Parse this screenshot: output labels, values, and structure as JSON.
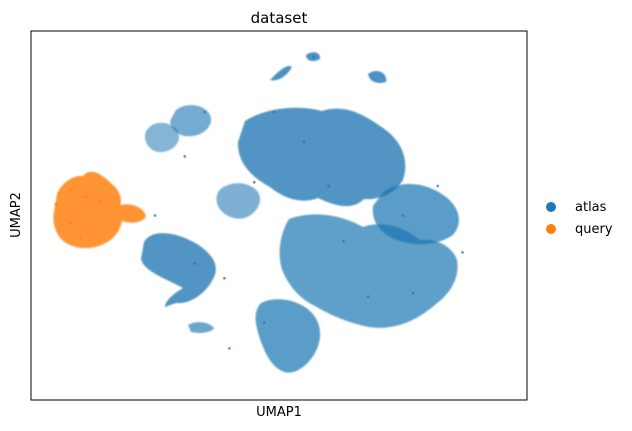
{
  "chart_data": {
    "type": "scatter",
    "title": "dataset",
    "xlabel": "UMAP1",
    "ylabel": "UMAP2",
    "xticks": [],
    "yticks": [],
    "grid": false,
    "legend": {
      "placement": "right-center",
      "entries": [
        "atlas",
        "query"
      ]
    },
    "series": [
      {
        "name": "atlas",
        "color": "#1f77b4",
        "points": [
          {
            "x": 0.25,
            "y": 0.5
          },
          {
            "x": 0.33,
            "y": 0.37
          },
          {
            "x": 0.39,
            "y": 0.33
          },
          {
            "x": 0.55,
            "y": 0.7
          },
          {
            "x": 0.6,
            "y": 0.58
          },
          {
            "x": 0.63,
            "y": 0.43
          },
          {
            "x": 0.68,
            "y": 0.28
          },
          {
            "x": 0.75,
            "y": 0.5
          },
          {
            "x": 0.82,
            "y": 0.58
          },
          {
            "x": 0.87,
            "y": 0.4
          },
          {
            "x": 0.45,
            "y": 0.59
          },
          {
            "x": 0.49,
            "y": 0.78
          },
          {
            "x": 0.57,
            "y": 0.93
          },
          {
            "x": 0.47,
            "y": 0.21
          },
          {
            "x": 0.77,
            "y": 0.29
          },
          {
            "x": 0.35,
            "y": 0.78
          },
          {
            "x": 0.31,
            "y": 0.66
          },
          {
            "x": 0.4,
            "y": 0.14
          }
        ]
      },
      {
        "name": "query",
        "color": "#ff7f0e",
        "points": [
          {
            "x": 0.05,
            "y": 0.53
          },
          {
            "x": 0.08,
            "y": 0.57
          },
          {
            "x": 0.11,
            "y": 0.55
          },
          {
            "x": 0.14,
            "y": 0.54
          },
          {
            "x": 0.08,
            "y": 0.48
          },
          {
            "x": 0.1,
            "y": 0.44
          }
        ]
      }
    ]
  }
}
